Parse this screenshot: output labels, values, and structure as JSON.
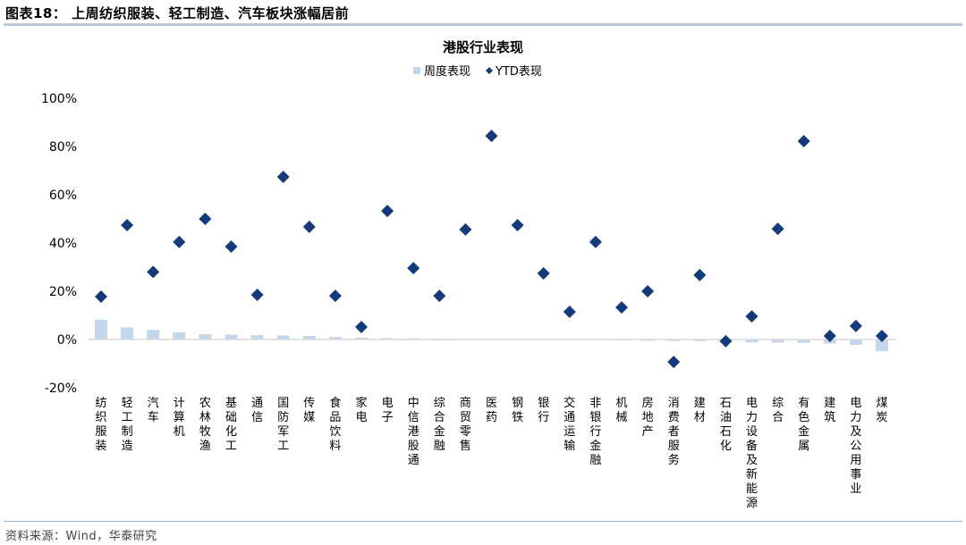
{
  "header": {
    "figure_title": "图表18：  上周纺织服装、轻工制造、汽车板块涨幅居前"
  },
  "footer": {
    "source": "资料来源：Wind，华泰研究"
  },
  "colors": {
    "bar": "#c3d7ec",
    "marker": "#153a7a",
    "axis": "#d9d9d9",
    "rule": "#b9c9de"
  },
  "chart_data": {
    "type": "bar",
    "title": "港股行业表现",
    "legend": [
      {
        "name": "周度表现",
        "marker": "square"
      },
      {
        "name": "YTD表现",
        "marker": "diamond"
      }
    ],
    "legend_position": "top",
    "xlabel": "",
    "ylabel": "",
    "ylim": [
      -0.2,
      1.0
    ],
    "yticks": [
      "100%",
      "80%",
      "60%",
      "40%",
      "20%",
      "0%",
      "-20%"
    ],
    "ytick_values": [
      1.0,
      0.8,
      0.6,
      0.4,
      0.2,
      0.0,
      -0.2
    ],
    "grid": false,
    "categories": [
      "纺织服装",
      "轻工制造",
      "汽车",
      "计算机",
      "农林牧渔",
      "基础化工",
      "通信",
      "国防军工",
      "传媒",
      "食品饮料",
      "家电",
      "电子",
      "中信港股通",
      "综合金融",
      "商贸零售",
      "医药",
      "钢铁",
      "银行",
      "交通运输",
      "非银行金融",
      "机械",
      "房地产",
      "消费者服务",
      "建材",
      "石油石化",
      "电力设备及新能源",
      "综合",
      "有色金属",
      "建筑",
      "电力及公用事业",
      "煤炭"
    ],
    "series": [
      {
        "name": "周度表现",
        "type": "bar",
        "values": [
          0.082,
          0.05,
          0.04,
          0.03,
          0.022,
          0.02,
          0.018,
          0.017,
          0.015,
          0.011,
          0.008,
          0.006,
          0.005,
          0.004,
          0.002,
          0.001,
          0.0,
          0.0,
          -0.001,
          -0.002,
          -0.003,
          -0.005,
          -0.006,
          -0.007,
          -0.008,
          -0.012,
          -0.013,
          -0.014,
          -0.017,
          -0.022,
          -0.048
        ]
      },
      {
        "name": "YTD表现",
        "type": "scatter",
        "values": [
          0.178,
          0.474,
          0.28,
          0.404,
          0.5,
          0.385,
          0.185,
          0.674,
          0.467,
          0.181,
          0.052,
          0.533,
          0.296,
          0.181,
          0.456,
          0.844,
          0.474,
          0.274,
          0.115,
          0.404,
          0.133,
          0.2,
          -0.093,
          0.267,
          -0.007,
          0.096,
          0.459,
          0.822,
          0.015,
          0.056,
          0.015
        ]
      }
    ]
  }
}
